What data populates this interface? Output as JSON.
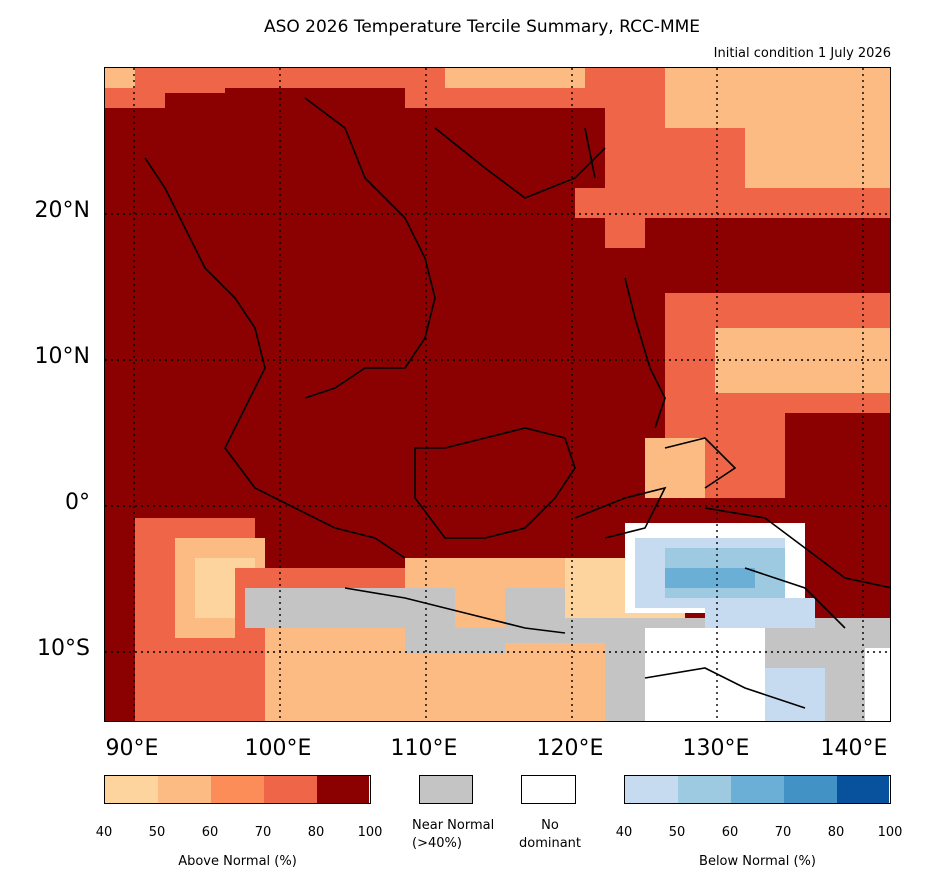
{
  "title": "ASO 2026 Temperature Tercile Summary, RCC-MME",
  "subtitle": "Initial condition 1 July 2026",
  "lat_labels": [
    "20°N",
    "10°N",
    "0°",
    "10°S"
  ],
  "lon_labels": [
    "90°E",
    "100°E",
    "110°E",
    "120°E",
    "130°E",
    "140°E"
  ],
  "above_normal": {
    "label": "Above Normal (%)",
    "ticks": [
      "40",
      "50",
      "60",
      "70",
      "80",
      "100"
    ],
    "colors": [
      "#fdd49e",
      "#fdbb84",
      "#fc8d59",
      "#ef6548",
      "#8b0000"
    ]
  },
  "near_normal": {
    "label_line1": "Near Normal",
    "label_line2": "(>40%)",
    "color": "#c4c4c4"
  },
  "no_dominant": {
    "label_line1": "No",
    "label_line2": "dominant",
    "color": "#ffffff"
  },
  "below_normal": {
    "label": "Below Normal (%)",
    "ticks": [
      "40",
      "50",
      "60",
      "70",
      "80",
      "100"
    ],
    "colors": [
      "#c6dbef",
      "#9ecae1",
      "#6baed6",
      "#4292c6",
      "#08519c"
    ]
  }
}
